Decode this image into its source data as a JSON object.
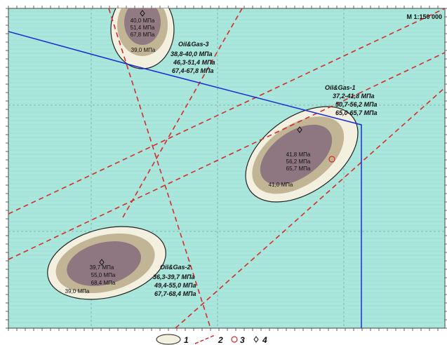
{
  "scale_label": "M 1:150 000",
  "colors": {
    "background": "#a9e6dc",
    "grid": "#7fbfb4",
    "zone1_fill": "#f4f0e0",
    "zone_mid": "#c2b596",
    "zone_core": "#8a7080",
    "fault_line": "#d62b2b",
    "boundary_line": "#1a2bd4",
    "outline": "#222222"
  },
  "fields": [
    {
      "name": "Oil&Gas-3",
      "ranges": [
        "38,8-40,0 МПа",
        "46,3-51,4 МПа",
        "67,4-67,8 МПа"
      ],
      "center_values": [
        "40,0 МПа",
        "51,4 МПа",
        "67,8 МПа"
      ],
      "contour_label": "39,0 МПа"
    },
    {
      "name": "Oil&Gas-1",
      "ranges": [
        "37,2-41,8 МПа",
        "50,7-56,2 МПа",
        "65,0-65,7 МПа"
      ],
      "center_values": [
        "41,8 МПа",
        "56,2 МПа",
        "65,7 МПа"
      ],
      "contour_label": "41,0 МПа"
    },
    {
      "name": "Oil&Gas-2",
      "ranges": [
        "36,3-39,7 МПа",
        "49,4-55,0 МПа",
        "67,7-68,4 МПа"
      ],
      "center_values": [
        "39,7 МПа",
        "55,0 МПа",
        "68,4 МПа"
      ],
      "contour_label": "39,0 МПа"
    }
  ],
  "legend": [
    {
      "symbol": "zone-ellipse",
      "label": "1"
    },
    {
      "symbol": "dashed-line",
      "label": "2"
    },
    {
      "symbol": "circle",
      "label": "3"
    },
    {
      "symbol": "diamond",
      "label": "4"
    }
  ]
}
